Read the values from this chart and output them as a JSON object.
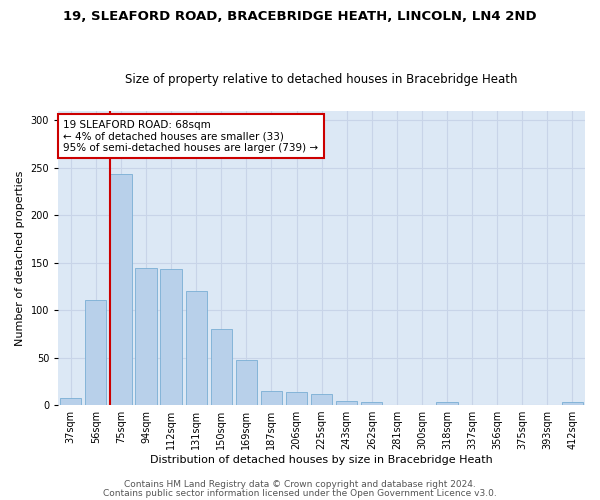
{
  "title1": "19, SLEAFORD ROAD, BRACEBRIDGE HEATH, LINCOLN, LN4 2ND",
  "title2": "Size of property relative to detached houses in Bracebridge Heath",
  "xlabel": "Distribution of detached houses by size in Bracebridge Heath",
  "ylabel": "Number of detached properties",
  "footer1": "Contains HM Land Registry data © Crown copyright and database right 2024.",
  "footer2": "Contains public sector information licensed under the Open Government Licence v3.0.",
  "categories": [
    "37sqm",
    "56sqm",
    "75sqm",
    "94sqm",
    "112sqm",
    "131sqm",
    "150sqm",
    "169sqm",
    "187sqm",
    "206sqm",
    "225sqm",
    "243sqm",
    "262sqm",
    "281sqm",
    "300sqm",
    "318sqm",
    "337sqm",
    "356sqm",
    "375sqm",
    "393sqm",
    "412sqm"
  ],
  "values": [
    7,
    111,
    243,
    144,
    143,
    120,
    80,
    48,
    15,
    14,
    12,
    4,
    3,
    0,
    0,
    3,
    0,
    0,
    0,
    0,
    3
  ],
  "bar_color": "#b8d0ea",
  "bar_edge_color": "#7aaed4",
  "annotation_text": "19 SLEAFORD ROAD: 68sqm\n← 4% of detached houses are smaller (33)\n95% of semi-detached houses are larger (739) →",
  "annotation_box_color": "#ffffff",
  "annotation_box_edge": "#cc0000",
  "red_line_color": "#cc0000",
  "grid_color": "#c8d4e8",
  "bg_color": "#dce8f5",
  "ylim": [
    0,
    310
  ],
  "title1_fontsize": 9.5,
  "title2_fontsize": 8.5,
  "xlabel_fontsize": 8,
  "ylabel_fontsize": 8,
  "tick_fontsize": 7,
  "footer_fontsize": 6.5,
  "ann_fontsize": 7.5
}
